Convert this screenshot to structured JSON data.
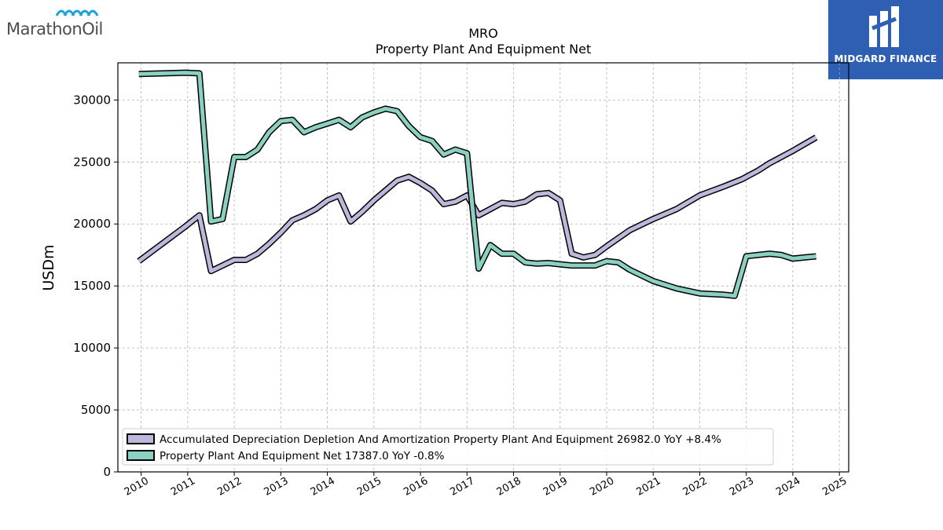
{
  "branding": {
    "company_logo_text": "MarathonOil",
    "publisher_logo_text": "MIDGARD FINANCE"
  },
  "chart_data": {
    "type": "line",
    "title": "MRO",
    "subtitle": "Property Plant And Equipment Net",
    "xlabel": "",
    "ylabel": "USDm",
    "xlim": [
      2009.5,
      2025.2
    ],
    "ylim": [
      0,
      33000
    ],
    "grid": true,
    "legend_position": "lower-left",
    "x_ticks": [
      "2010",
      "2011",
      "2012",
      "2013",
      "2014",
      "2015",
      "2016",
      "2017",
      "2018",
      "2019",
      "2020",
      "2021",
      "2022",
      "2023",
      "2024",
      "2025"
    ],
    "y_ticks": [
      "0",
      "5000",
      "10000",
      "15000",
      "20000",
      "25000",
      "30000"
    ],
    "series": [
      {
        "name": "Accumulated Depreciation Depletion And Amortization Property Plant And Equipment",
        "legend_label": "Accumulated Depreciation Depletion And Amortization Property Plant And Equipment  26982.0 YoY +8.4%",
        "color": "#bcb8db",
        "points": [
          [
            2009.95,
            17000
          ],
          [
            2010.95,
            19800
          ],
          [
            2011.25,
            20700
          ],
          [
            2011.5,
            16200
          ],
          [
            2012.0,
            17100
          ],
          [
            2012.25,
            17100
          ],
          [
            2012.5,
            17600
          ],
          [
            2012.75,
            18400
          ],
          [
            2013.0,
            19300
          ],
          [
            2013.25,
            20300
          ],
          [
            2013.5,
            20700
          ],
          [
            2013.75,
            21200
          ],
          [
            2014.0,
            21900
          ],
          [
            2014.25,
            22300
          ],
          [
            2014.5,
            20200
          ],
          [
            2014.75,
            21000
          ],
          [
            2015.0,
            21900
          ],
          [
            2015.25,
            22700
          ],
          [
            2015.5,
            23500
          ],
          [
            2015.75,
            23800
          ],
          [
            2016.0,
            23300
          ],
          [
            2016.25,
            22700
          ],
          [
            2016.5,
            21600
          ],
          [
            2016.75,
            21800
          ],
          [
            2017.0,
            22300
          ],
          [
            2017.25,
            20700
          ],
          [
            2017.5,
            21200
          ],
          [
            2017.75,
            21700
          ],
          [
            2018.0,
            21600
          ],
          [
            2018.25,
            21800
          ],
          [
            2018.5,
            22400
          ],
          [
            2018.75,
            22500
          ],
          [
            2019.0,
            21900
          ],
          [
            2019.25,
            17600
          ],
          [
            2019.5,
            17300
          ],
          [
            2019.75,
            17500
          ],
          [
            2020.0,
            18200
          ],
          [
            2020.5,
            19500
          ],
          [
            2021.0,
            20400
          ],
          [
            2021.5,
            21200
          ],
          [
            2022.0,
            22300
          ],
          [
            2022.5,
            23000
          ],
          [
            2022.9,
            23600
          ],
          [
            2023.25,
            24300
          ],
          [
            2023.5,
            24900
          ],
          [
            2024.0,
            25900
          ],
          [
            2024.5,
            26982
          ]
        ]
      },
      {
        "name": "Property Plant And Equipment Net",
        "legend_label": "Property Plant And Equipment Net  17387.0 YoY -0.8%",
        "color": "#8ad1c2",
        "points": [
          [
            2009.95,
            32100
          ],
          [
            2010.95,
            32200
          ],
          [
            2011.25,
            32150
          ],
          [
            2011.5,
            20200
          ],
          [
            2011.75,
            20400
          ],
          [
            2012.0,
            25400
          ],
          [
            2012.25,
            25400
          ],
          [
            2012.5,
            26000
          ],
          [
            2012.75,
            27400
          ],
          [
            2013.0,
            28300
          ],
          [
            2013.25,
            28400
          ],
          [
            2013.5,
            27400
          ],
          [
            2013.75,
            27800
          ],
          [
            2014.0,
            28100
          ],
          [
            2014.25,
            28400
          ],
          [
            2014.5,
            27800
          ],
          [
            2014.75,
            28600
          ],
          [
            2015.0,
            29000
          ],
          [
            2015.25,
            29300
          ],
          [
            2015.5,
            29100
          ],
          [
            2015.75,
            27900
          ],
          [
            2016.0,
            27000
          ],
          [
            2016.25,
            26700
          ],
          [
            2016.5,
            25600
          ],
          [
            2016.75,
            26000
          ],
          [
            2017.0,
            25700
          ],
          [
            2017.25,
            16400
          ],
          [
            2017.5,
            18300
          ],
          [
            2017.75,
            17600
          ],
          [
            2018.0,
            17600
          ],
          [
            2018.25,
            16900
          ],
          [
            2018.5,
            16800
          ],
          [
            2018.75,
            16850
          ],
          [
            2019.0,
            16750
          ],
          [
            2019.25,
            16650
          ],
          [
            2019.5,
            16650
          ],
          [
            2019.75,
            16650
          ],
          [
            2020.0,
            17000
          ],
          [
            2020.25,
            16900
          ],
          [
            2020.5,
            16300
          ],
          [
            2021.0,
            15400
          ],
          [
            2021.5,
            14800
          ],
          [
            2022.0,
            14400
          ],
          [
            2022.5,
            14300
          ],
          [
            2022.75,
            14200
          ],
          [
            2023.0,
            17400
          ],
          [
            2023.5,
            17600
          ],
          [
            2023.75,
            17500
          ],
          [
            2024.0,
            17200
          ],
          [
            2024.25,
            17300
          ],
          [
            2024.5,
            17387
          ]
        ]
      }
    ]
  }
}
